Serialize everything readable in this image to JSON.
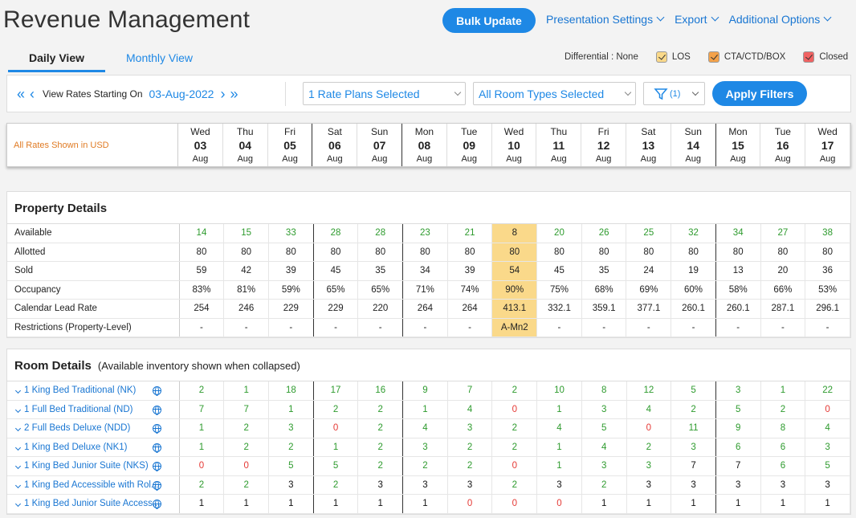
{
  "app": {
    "title": "Revenue Management",
    "bulk_update": "Bulk Update",
    "links": [
      "Presentation Settings",
      "Export",
      "Additional Options"
    ]
  },
  "tabs": [
    "Daily View",
    "Monthly View"
  ],
  "legend": {
    "label": "Differential : None",
    "items": [
      {
        "label": "LOS",
        "color": "#fad98a"
      },
      {
        "label": "CTA/CTD/BOX",
        "color": "#f4a24a"
      },
      {
        "label": "Closed",
        "color": "#f06262"
      }
    ]
  },
  "filters": {
    "view_label": "View Rates Starting On",
    "start_date": "03-Aug-2022",
    "rate_plans": "1 Rate Plans Selected",
    "room_types": "All Room Types Selected",
    "filter_count": "(1)",
    "apply": "Apply Filters"
  },
  "grid": {
    "currency_note": "All Rates Shown in USD",
    "days": [
      {
        "dow": "Wed",
        "num": "03",
        "mon": "Aug"
      },
      {
        "dow": "Thu",
        "num": "04",
        "mon": "Aug"
      },
      {
        "dow": "Fri",
        "num": "05",
        "mon": "Aug"
      },
      {
        "dow": "Sat",
        "num": "06",
        "mon": "Aug"
      },
      {
        "dow": "Sun",
        "num": "07",
        "mon": "Aug"
      },
      {
        "dow": "Mon",
        "num": "08",
        "mon": "Aug"
      },
      {
        "dow": "Tue",
        "num": "09",
        "mon": "Aug"
      },
      {
        "dow": "Wed",
        "num": "10",
        "mon": "Aug"
      },
      {
        "dow": "Thu",
        "num": "11",
        "mon": "Aug"
      },
      {
        "dow": "Fri",
        "num": "12",
        "mon": "Aug"
      },
      {
        "dow": "Sat",
        "num": "13",
        "mon": "Aug"
      },
      {
        "dow": "Sun",
        "num": "14",
        "mon": "Aug"
      },
      {
        "dow": "Mon",
        "num": "15",
        "mon": "Aug"
      },
      {
        "dow": "Tue",
        "num": "16",
        "mon": "Aug"
      },
      {
        "dow": "Wed",
        "num": "17",
        "mon": "Aug"
      }
    ]
  },
  "property": {
    "title": "Property Details",
    "rows": [
      {
        "label": "Available",
        "values": [
          "14",
          "15",
          "33",
          "28",
          "28",
          "23",
          "21",
          "8",
          "20",
          "26",
          "25",
          "32",
          "34",
          "27",
          "38"
        ],
        "color": "green"
      },
      {
        "label": "Allotted",
        "values": [
          "80",
          "80",
          "80",
          "80",
          "80",
          "80",
          "80",
          "80",
          "80",
          "80",
          "80",
          "80",
          "80",
          "80",
          "80"
        ]
      },
      {
        "label": "Sold",
        "values": [
          "59",
          "42",
          "39",
          "45",
          "35",
          "34",
          "39",
          "54",
          "45",
          "35",
          "24",
          "19",
          "13",
          "20",
          "36"
        ]
      },
      {
        "label": "Occupancy",
        "values": [
          "83%",
          "81%",
          "59%",
          "65%",
          "65%",
          "71%",
          "74%",
          "90%",
          "75%",
          "68%",
          "69%",
          "60%",
          "58%",
          "66%",
          "53%"
        ]
      },
      {
        "label": "Calendar Lead Rate",
        "values": [
          "254",
          "246",
          "229",
          "229",
          "220",
          "264",
          "264",
          "413.1",
          "332.1",
          "359.1",
          "377.1",
          "260.1",
          "260.1",
          "287.1",
          "296.1"
        ]
      },
      {
        "label": "Restrictions (Property-Level)",
        "values": [
          "-",
          "-",
          "-",
          "-",
          "-",
          "-",
          "-",
          "A-Mn2",
          "-",
          "-",
          "-",
          "-",
          "-",
          "-",
          "-"
        ]
      }
    ]
  },
  "rooms": {
    "title": "Room Details",
    "subtitle": "(Available inventory shown when collapsed)",
    "rows": [
      {
        "label": "1 King Bed Traditional (NK)",
        "values": [
          "2",
          "1",
          "18",
          "17",
          "16",
          "9",
          "7",
          "2",
          "10",
          "8",
          "12",
          "5",
          "3",
          "1",
          "22"
        ]
      },
      {
        "label": "1 Full Bed Traditional (ND)",
        "values": [
          "7",
          "7",
          "1",
          "2",
          "2",
          "1",
          "4",
          "0",
          "1",
          "3",
          "4",
          "2",
          "5",
          "2",
          "0"
        ]
      },
      {
        "label": "2 Full Beds Deluxe (NDD)",
        "values": [
          "1",
          "2",
          "3",
          "0",
          "2",
          "4",
          "3",
          "2",
          "4",
          "5",
          "0",
          "11",
          "9",
          "8",
          "4"
        ]
      },
      {
        "label": "1 King Bed Deluxe (NK1)",
        "values": [
          "1",
          "2",
          "2",
          "1",
          "2",
          "3",
          "2",
          "2",
          "1",
          "4",
          "2",
          "3",
          "6",
          "6",
          "3"
        ]
      },
      {
        "label": "1 King Bed Junior Suite (NKS)",
        "values": [
          "0",
          "0",
          "5",
          "5",
          "2",
          "2",
          "2",
          "0",
          "1",
          "3",
          "3",
          "7",
          "7",
          "6",
          "5"
        ]
      },
      {
        "label": "1 King Bed Accessible with Rol...",
        "values": [
          "2",
          "2",
          "3",
          "2",
          "3",
          "3",
          "3",
          "2",
          "3",
          "2",
          "3",
          "3",
          "3",
          "3",
          "3"
        ]
      },
      {
        "label": "1 King Bed Junior Suite Access...",
        "values": [
          "1",
          "1",
          "1",
          "1",
          "1",
          "1",
          "0",
          "0",
          "0",
          "1",
          "1",
          "1",
          "1",
          "1",
          "1"
        ]
      }
    ],
    "colors": [
      [
        "green",
        "green",
        "green",
        "green",
        "green",
        "green",
        "green",
        "green",
        "green",
        "green",
        "green",
        "green",
        "green",
        "green",
        "green"
      ],
      [
        "green",
        "green",
        "green",
        "green",
        "green",
        "green",
        "green",
        "red",
        "green",
        "green",
        "green",
        "green",
        "green",
        "green",
        "red"
      ],
      [
        "green",
        "green",
        "green",
        "red",
        "green",
        "green",
        "green",
        "green",
        "green",
        "green",
        "red",
        "green",
        "green",
        "green",
        "green"
      ],
      [
        "green",
        "green",
        "green",
        "green",
        "green",
        "green",
        "green",
        "green",
        "green",
        "green",
        "green",
        "green",
        "green",
        "green",
        "green"
      ],
      [
        "red",
        "red",
        "green",
        "green",
        "green",
        "green",
        "green",
        "red",
        "green",
        "green",
        "green",
        "dark",
        "dark",
        "green",
        "green"
      ],
      [
        "green",
        "green",
        "dark",
        "green",
        "dark",
        "dark",
        "dark",
        "green",
        "dark",
        "green",
        "dark",
        "dark",
        "dark",
        "dark",
        "dark"
      ],
      [
        "dark",
        "dark",
        "dark",
        "dark",
        "dark",
        "dark",
        "red",
        "red",
        "red",
        "dark",
        "dark",
        "dark",
        "dark",
        "dark",
        "dark"
      ]
    ]
  }
}
